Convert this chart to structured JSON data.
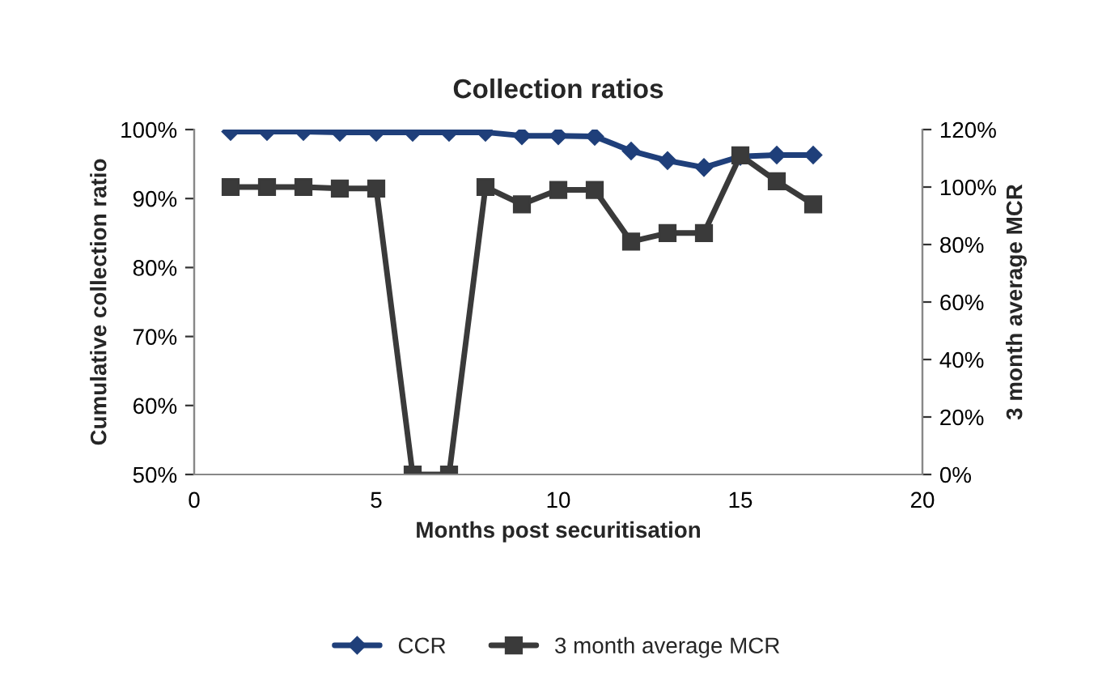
{
  "chart_data": {
    "type": "line",
    "title": "Collection ratios",
    "xlabel": "Months post securitisation",
    "ylabel": "Cumulative collection ratio",
    "y2label": "3 month average MCR",
    "x": [
      1,
      2,
      3,
      4,
      5,
      6,
      7,
      8,
      9,
      10,
      11,
      12,
      13,
      14,
      15,
      16,
      17
    ],
    "series": [
      {
        "name": "CCR",
        "color": "#1f3f7a",
        "marker": "diamond",
        "values": [
          99.7,
          99.7,
          99.7,
          99.6,
          99.6,
          99.6,
          99.6,
          99.6,
          99.1,
          99.1,
          99.0,
          96.9,
          95.5,
          94.5,
          96.1,
          96.3,
          96.3
        ]
      },
      {
        "name": "3 month average MCR",
        "color": "#3a3a3a",
        "marker": "square",
        "axis": "y2",
        "values": [
          100,
          100,
          100,
          99.5,
          99.5,
          0,
          0,
          100,
          94,
          99,
          99,
          81,
          84,
          84,
          111,
          102,
          94
        ]
      }
    ],
    "xlim": [
      0,
      20
    ],
    "xticks": [
      0,
      5,
      10,
      15,
      20
    ],
    "ylim": [
      50,
      100
    ],
    "yticks": [
      {
        "value": 50,
        "label": "50%"
      },
      {
        "value": 60,
        "label": "60%"
      },
      {
        "value": 70,
        "label": "70%"
      },
      {
        "value": 80,
        "label": "80%"
      },
      {
        "value": 90,
        "label": "90%"
      },
      {
        "value": 100,
        "label": "100%"
      }
    ],
    "y2lim": [
      0,
      120
    ],
    "y2ticks": [
      {
        "value": 0,
        "label": "0%"
      },
      {
        "value": 20,
        "label": "20%"
      },
      {
        "value": 40,
        "label": "40%"
      },
      {
        "value": 60,
        "label": "60%"
      },
      {
        "value": 80,
        "label": "80%"
      },
      {
        "value": 100,
        "label": "100%"
      },
      {
        "value": 120,
        "label": "120%"
      }
    ],
    "grid": false,
    "legend": "bottom"
  }
}
